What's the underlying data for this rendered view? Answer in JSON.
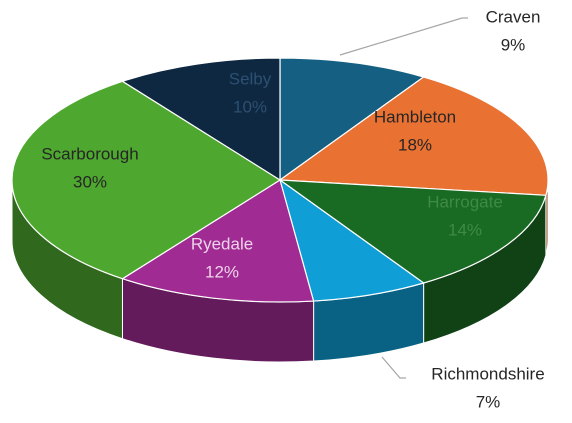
{
  "chart_data": {
    "type": "pie3d",
    "categories": [
      "Craven",
      "Hambleton",
      "Harrogate",
      "Richmondshire",
      "Ryedale",
      "Scarborough",
      "Selby"
    ],
    "values": [
      9,
      18,
      14,
      7,
      12,
      30,
      10
    ],
    "value_labels": [
      "9%",
      "18%",
      "14%",
      "7%",
      "12%",
      "30%",
      "10%"
    ],
    "colors": [
      "#156082",
      "#e97132",
      "#196b24",
      "#0f9ed5",
      "#a02b93",
      "#4ea72e",
      "#0e2841"
    ]
  }
}
